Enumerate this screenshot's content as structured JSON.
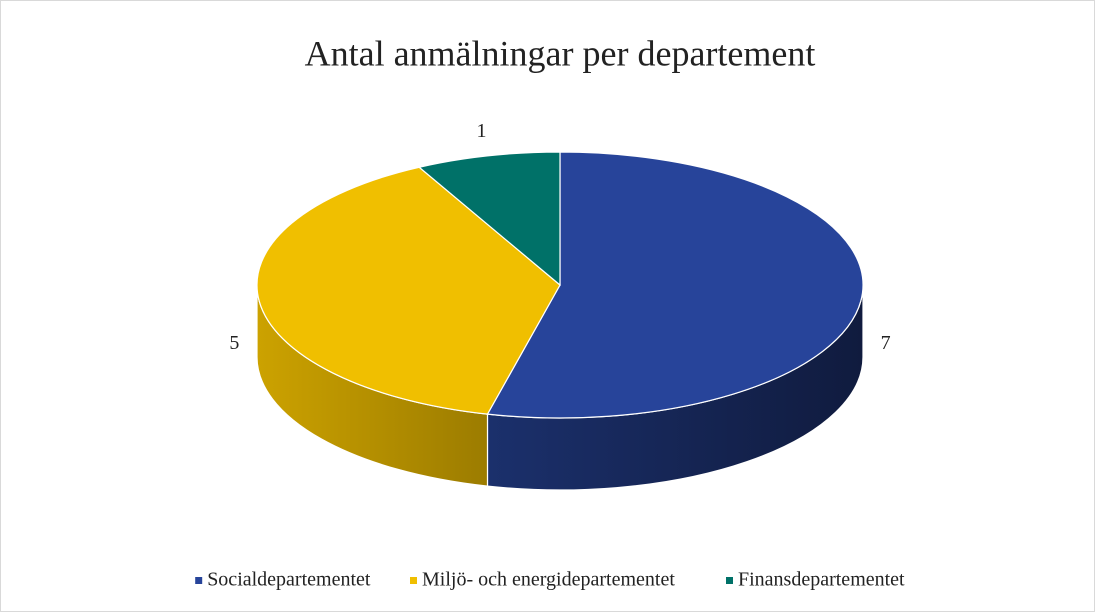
{
  "chart_data": {
    "type": "pie3d",
    "title": "Antal anmälningar per departement",
    "categories": [
      "Socialdepartementet",
      "Miljö- och energidepartementet",
      "Finansdepartementet"
    ],
    "values": [
      7,
      5,
      1
    ],
    "colors": [
      "#27449a",
      "#f0bf00",
      "#007168"
    ],
    "legend": "bottom"
  }
}
